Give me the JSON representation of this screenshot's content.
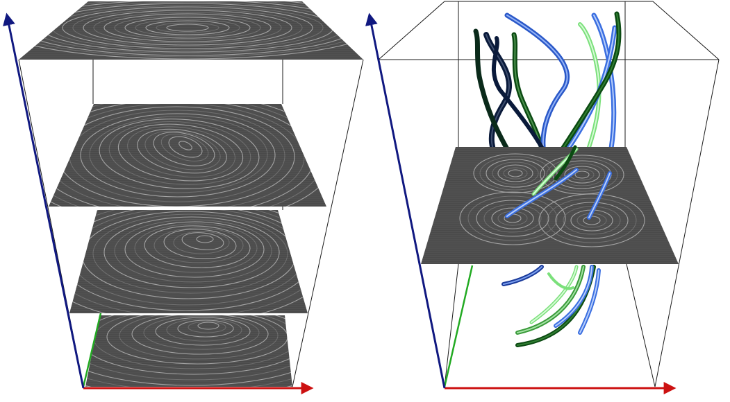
{
  "figure": {
    "panels": [
      {
        "id": "left",
        "description_free": true,
        "slices": 4
      },
      {
        "id": "right",
        "slices": 1,
        "vortex_cores": 4
      }
    ],
    "colors": {
      "x_axis": "#cc1111",
      "y_axis": "#22aa22",
      "z_axis": "#101880",
      "slice_base": "#4a4a4a",
      "slice_line": "#e8e8e8",
      "tube_dark_green": "#0b4a12",
      "tube_light_green": "#7be07b",
      "tube_blue": "#3a6ee0",
      "tube_light_blue": "#8fb4ff",
      "tube_navy": "#0a1a3a"
    }
  }
}
